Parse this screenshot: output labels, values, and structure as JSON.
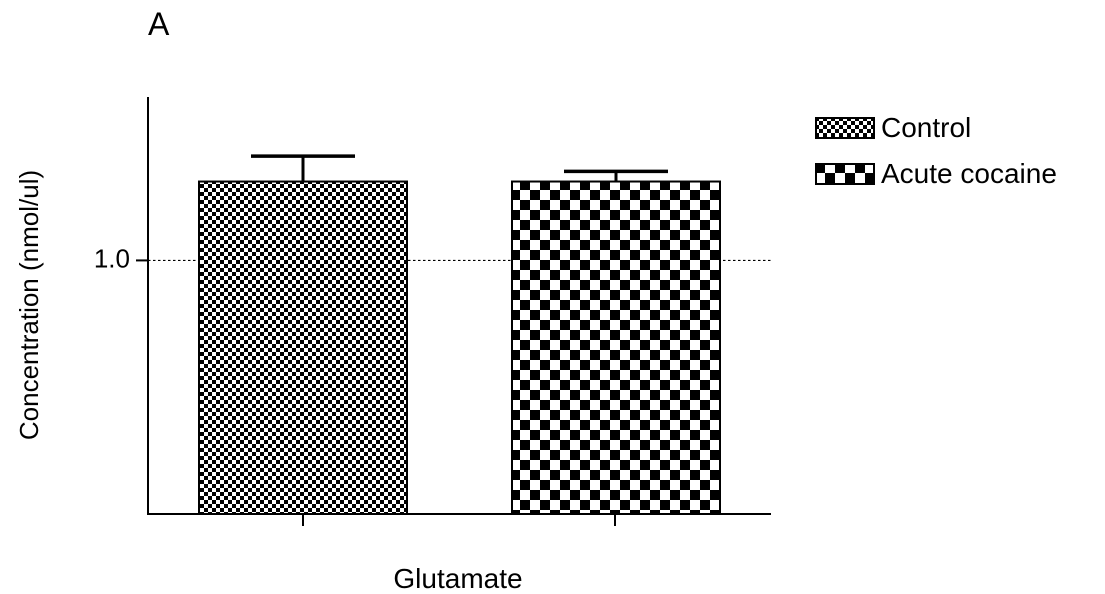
{
  "panel_label": "A",
  "colors": {
    "ink": "#000000",
    "background": "#ffffff"
  },
  "chart_data": {
    "type": "bar",
    "xlabel": "Glutamate",
    "ylabel": "Concentration (nmol/ul)",
    "yticks": [
      {
        "value": 1.0,
        "label": "1.0"
      }
    ],
    "ylim": [
      0.55,
      1.29
    ],
    "reference_line": {
      "value": 1.0,
      "style": "dotted"
    },
    "grid": false,
    "legend_placement": "top-right",
    "series": [
      {
        "name": "Control",
        "value": 1.14,
        "error": 0.045,
        "pattern": "fine-checker"
      },
      {
        "name": "Acute cocaine",
        "value": 1.14,
        "error": 0.018,
        "pattern": "coarse-checker"
      }
    ]
  }
}
